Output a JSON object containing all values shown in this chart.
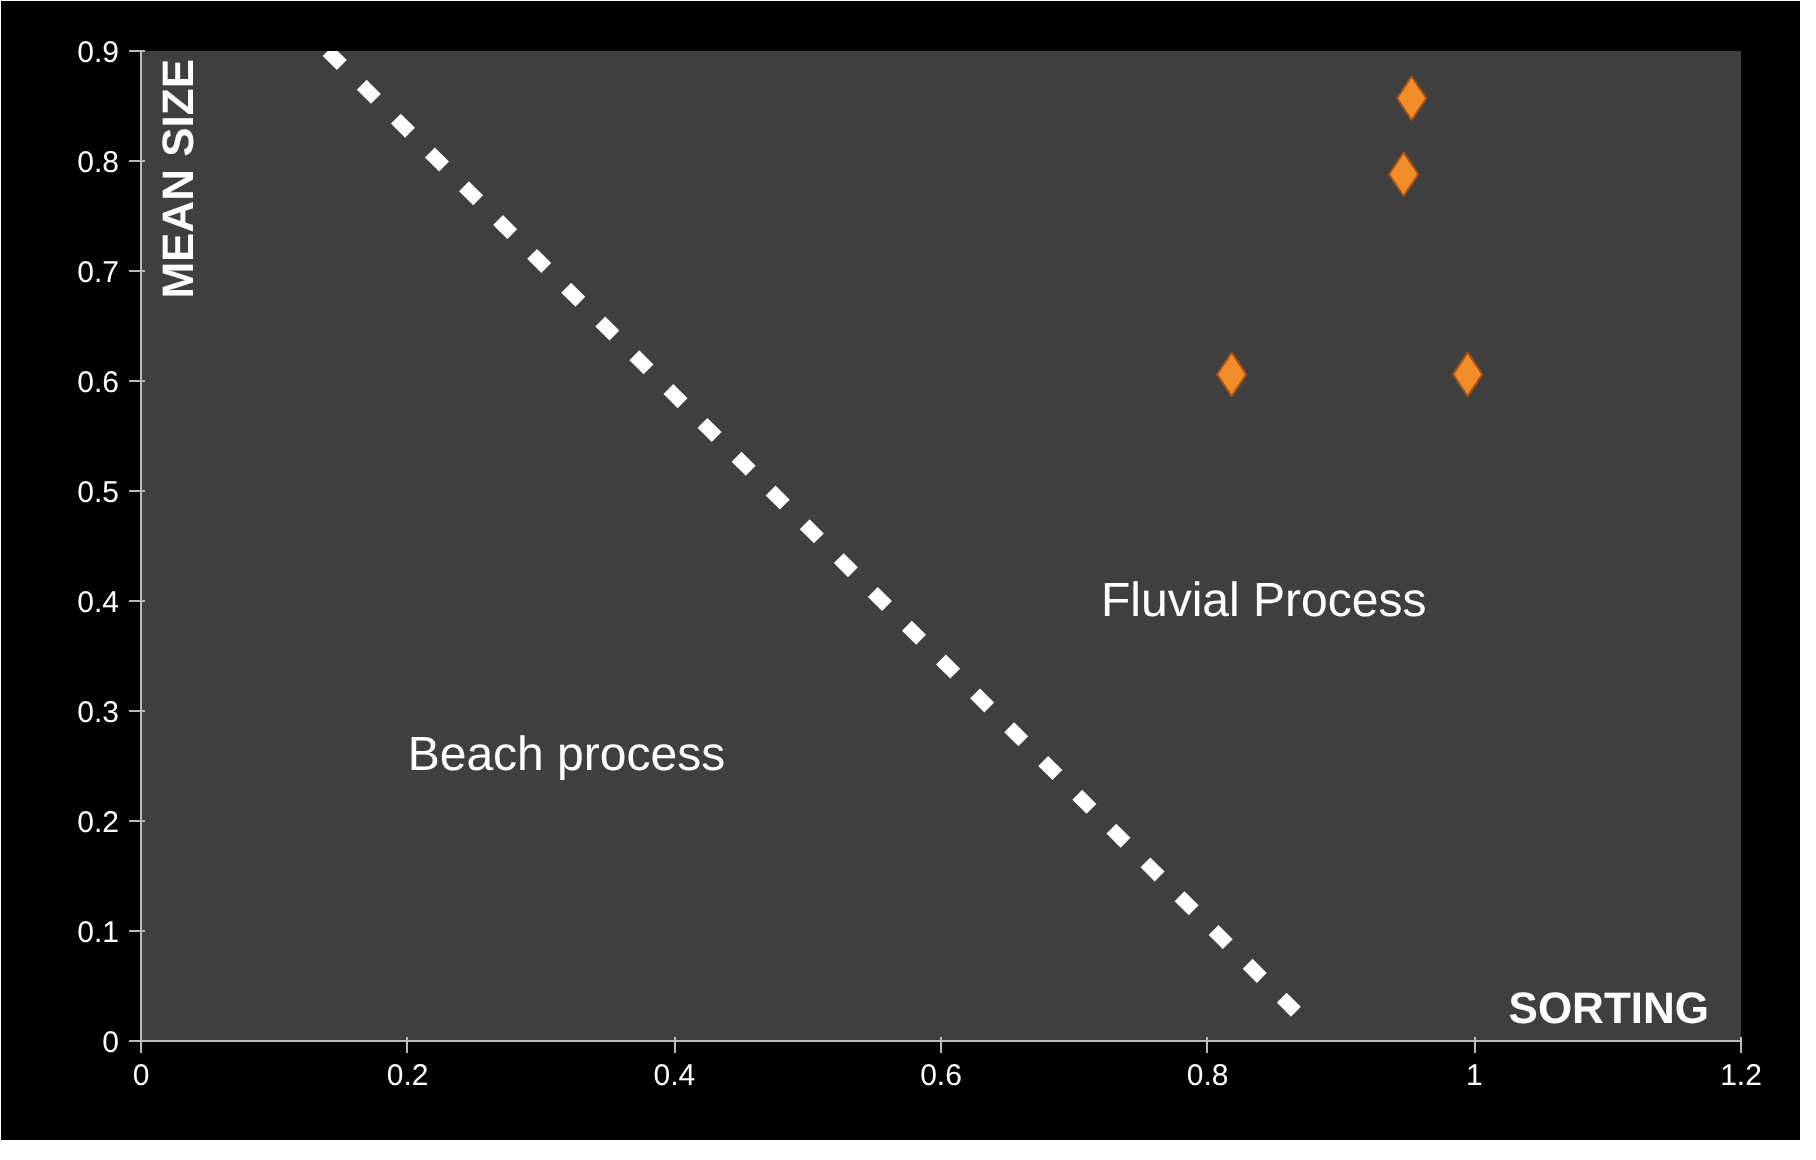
{
  "chart_data": {
    "type": "scatter",
    "xlabel": "SORTING",
    "ylabel": "MEAN SIZE",
    "xlim": [
      0,
      1.2
    ],
    "ylim": [
      0,
      0.9
    ],
    "xticks": [
      0,
      0.2,
      0.4,
      0.6,
      0.8,
      1,
      1.2
    ],
    "yticks": [
      0,
      0.1,
      0.2,
      0.3,
      0.4,
      0.5,
      0.6,
      0.7,
      0.8,
      0.9
    ],
    "grid": false,
    "marker": "diamond",
    "series": [
      {
        "color": "#f28c28",
        "x": [
          0.818,
          0.953,
          0.947,
          0.995
        ],
        "values": [
          0.606,
          0.857,
          0.788,
          0.606
        ]
      },
      {
        "type": "line",
        "color": "#ffffff",
        "line_style": "dashed",
        "marker": "none",
        "x": [
          0.14,
          0.88
        ],
        "values": [
          0.9,
          0.01
        ]
      }
    ],
    "annotations": [
      "Beach process",
      "Fluvial Process"
    ]
  }
}
